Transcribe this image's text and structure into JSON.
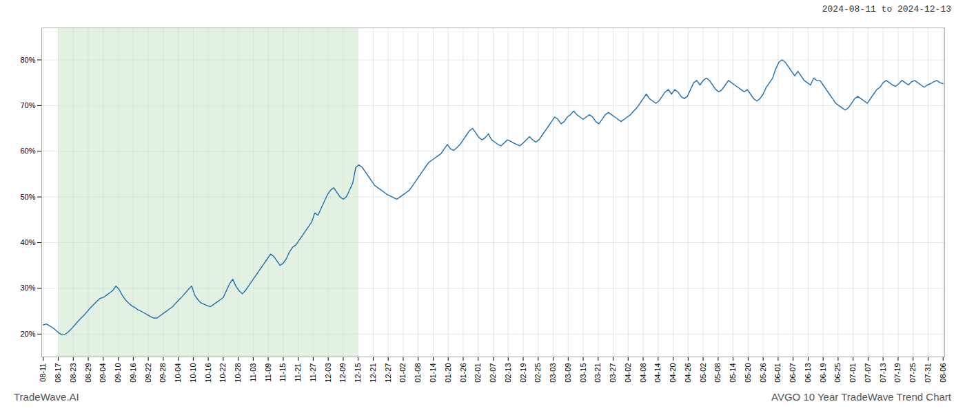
{
  "chart_data": {
    "type": "line",
    "title": "2024-08-11 to 2024-12-13",
    "footer_left": "TradeWave.AI",
    "footer_right": "AVGO 10 Year TradeWave Trend Chart",
    "color": "#1a6faf",
    "grid": true,
    "xlim": [
      -0.5,
      285.5
    ],
    "xticks": [
      {
        "value": 0,
        "label": "08-11"
      },
      {
        "value": 4.75,
        "label": "08-17"
      },
      {
        "value": 9.5,
        "label": "08-23"
      },
      {
        "value": 14.25,
        "label": "08-29"
      },
      {
        "value": 19,
        "label": "09-04"
      },
      {
        "value": 23.75,
        "label": "09-10"
      },
      {
        "value": 28.5,
        "label": "09-16"
      },
      {
        "value": 33.25,
        "label": "09-22"
      },
      {
        "value": 38,
        "label": "09-28"
      },
      {
        "value": 42.75,
        "label": "10-04"
      },
      {
        "value": 47.5,
        "label": "10-10"
      },
      {
        "value": 52.25,
        "label": "10-16"
      },
      {
        "value": 57,
        "label": "10-22"
      },
      {
        "value": 61.75,
        "label": "10-28"
      },
      {
        "value": 66.5,
        "label": "11-03"
      },
      {
        "value": 71.25,
        "label": "11-09"
      },
      {
        "value": 76,
        "label": "11-15"
      },
      {
        "value": 80.75,
        "label": "11-21"
      },
      {
        "value": 85.5,
        "label": "11-27"
      },
      {
        "value": 90.25,
        "label": "12-03"
      },
      {
        "value": 95,
        "label": "12-09"
      },
      {
        "value": 99.75,
        "label": "12-15"
      },
      {
        "value": 104.5,
        "label": "12-21"
      },
      {
        "value": 109.25,
        "label": "12-27"
      },
      {
        "value": 114,
        "label": "01-02"
      },
      {
        "value": 118.75,
        "label": "01-08"
      },
      {
        "value": 123.5,
        "label": "01-14"
      },
      {
        "value": 128.25,
        "label": "01-20"
      },
      {
        "value": 133,
        "label": "01-26"
      },
      {
        "value": 137.75,
        "label": "02-01"
      },
      {
        "value": 142.5,
        "label": "02-07"
      },
      {
        "value": 147.25,
        "label": "02-13"
      },
      {
        "value": 152,
        "label": "02-19"
      },
      {
        "value": 156.75,
        "label": "02-25"
      },
      {
        "value": 161.5,
        "label": "03-03"
      },
      {
        "value": 166.25,
        "label": "03-09"
      },
      {
        "value": 171,
        "label": "03-15"
      },
      {
        "value": 175.75,
        "label": "03-21"
      },
      {
        "value": 180.5,
        "label": "03-27"
      },
      {
        "value": 185.25,
        "label": "04-02"
      },
      {
        "value": 190,
        "label": "04-08"
      },
      {
        "value": 194.75,
        "label": "04-14"
      },
      {
        "value": 199.5,
        "label": "04-20"
      },
      {
        "value": 204.25,
        "label": "04-26"
      },
      {
        "value": 209,
        "label": "05-02"
      },
      {
        "value": 213.75,
        "label": "05-08"
      },
      {
        "value": 218.5,
        "label": "05-14"
      },
      {
        "value": 223.25,
        "label": "05-20"
      },
      {
        "value": 228,
        "label": "05-26"
      },
      {
        "value": 232.75,
        "label": "06-01"
      },
      {
        "value": 237.5,
        "label": "06-07"
      },
      {
        "value": 242.25,
        "label": "06-13"
      },
      {
        "value": 247,
        "label": "06-19"
      },
      {
        "value": 251.75,
        "label": "06-25"
      },
      {
        "value": 256.5,
        "label": "07-01"
      },
      {
        "value": 261.25,
        "label": "07-07"
      },
      {
        "value": 266,
        "label": "07-13"
      },
      {
        "value": 270.75,
        "label": "07-19"
      },
      {
        "value": 275.5,
        "label": "07-25"
      },
      {
        "value": 280.25,
        "label": "07-31"
      },
      {
        "value": 285,
        "label": "08-06"
      }
    ],
    "ylim": [
      15,
      87
    ],
    "yticks": [
      {
        "value": 20,
        "label": "20%"
      },
      {
        "value": 30,
        "label": "30%"
      },
      {
        "value": 40,
        "label": "40%"
      },
      {
        "value": 50,
        "label": "50%"
      },
      {
        "value": 60,
        "label": "60%"
      },
      {
        "value": 70,
        "label": "70%"
      },
      {
        "value": 80,
        "label": "80%"
      }
    ],
    "shade": {
      "x": [
        4.75,
        99.75
      ],
      "color": "#cce5cc"
    },
    "x": [
      0,
      1,
      2,
      3,
      4,
      5,
      6,
      7,
      8,
      9,
      10,
      11,
      12,
      13,
      14,
      15,
      16,
      17,
      18,
      19,
      20,
      21,
      22,
      23,
      24,
      25,
      26,
      27,
      28,
      29,
      30,
      31,
      32,
      33,
      34,
      35,
      36,
      37,
      38,
      39,
      40,
      41,
      42,
      43,
      44,
      45,
      46,
      47,
      48,
      49,
      50,
      51,
      52,
      53,
      54,
      55,
      56,
      57,
      58,
      59,
      60,
      61,
      62,
      63,
      64,
      65,
      66,
      67,
      68,
      69,
      70,
      71,
      72,
      73,
      74,
      75,
      76,
      77,
      78,
      79,
      80,
      81,
      82,
      83,
      84,
      85,
      86,
      87,
      88,
      89,
      90,
      91,
      92,
      93,
      94,
      95,
      96,
      97,
      98,
      99,
      100,
      101,
      102,
      103,
      104,
      105,
      106,
      107,
      108,
      109,
      110,
      111,
      112,
      113,
      114,
      115,
      116,
      117,
      118,
      119,
      120,
      121,
      122,
      123,
      124,
      125,
      126,
      127,
      128,
      129,
      130,
      131,
      132,
      133,
      134,
      135,
      136,
      137,
      138,
      139,
      140,
      141,
      142,
      143,
      144,
      145,
      146,
      147,
      148,
      149,
      150,
      151,
      152,
      153,
      154,
      155,
      156,
      157,
      158,
      159,
      160,
      161,
      162,
      163,
      164,
      165,
      166,
      167,
      168,
      169,
      170,
      171,
      172,
      173,
      174,
      175,
      176,
      177,
      178,
      179,
      180,
      181,
      182,
      183,
      184,
      185,
      186,
      187,
      188,
      189,
      190,
      191,
      192,
      193,
      194,
      195,
      196,
      197,
      198,
      199,
      200,
      201,
      202,
      203,
      204,
      205,
      206,
      207,
      208,
      209,
      210,
      211,
      212,
      213,
      214,
      215,
      216,
      217,
      218,
      219,
      220,
      221,
      222,
      223,
      224,
      225,
      226,
      227,
      228,
      229,
      230,
      231,
      232,
      233,
      234,
      235,
      236,
      237,
      238,
      239,
      240,
      241,
      242,
      243,
      244,
      245,
      246,
      247,
      248,
      249,
      250,
      251,
      252,
      253,
      254,
      255,
      256,
      257,
      258,
      259,
      260,
      261,
      262,
      263,
      264,
      265,
      266,
      267,
      268,
      269,
      270,
      271,
      272,
      273,
      274,
      275,
      276,
      277,
      278,
      279,
      280,
      281,
      282,
      283,
      284,
      285
    ],
    "values": [
      22.0,
      22.2,
      21.8,
      21.4,
      20.8,
      20.2,
      19.8,
      20.0,
      20.5,
      21.2,
      22.0,
      22.8,
      23.5,
      24.2,
      25.0,
      25.8,
      26.5,
      27.2,
      27.8,
      28.0,
      28.5,
      29.0,
      29.5,
      30.5,
      29.8,
      28.5,
      27.5,
      26.8,
      26.2,
      25.8,
      25.3,
      25.0,
      24.6,
      24.2,
      23.8,
      23.5,
      23.5,
      24.0,
      24.5,
      25.0,
      25.5,
      26.0,
      26.8,
      27.5,
      28.2,
      29.0,
      29.8,
      30.5,
      28.5,
      27.5,
      26.8,
      26.5,
      26.2,
      26.0,
      26.5,
      27.0,
      27.5,
      28.0,
      29.5,
      31.0,
      32.0,
      30.5,
      29.5,
      28.8,
      29.5,
      30.5,
      31.5,
      32.5,
      33.5,
      34.5,
      35.5,
      36.5,
      37.5,
      37.0,
      36.0,
      35.0,
      35.5,
      36.5,
      38.0,
      39.0,
      39.5,
      40.5,
      41.5,
      42.5,
      43.5,
      44.5,
      46.5,
      46.0,
      47.5,
      49.0,
      50.5,
      51.5,
      52.0,
      51.0,
      50.0,
      49.5,
      50.0,
      51.5,
      53.0,
      56.5,
      57.0,
      56.5,
      55.5,
      54.5,
      53.5,
      52.5,
      52.0,
      51.5,
      51.0,
      50.5,
      50.2,
      49.8,
      49.5,
      50.0,
      50.5,
      51.0,
      51.5,
      52.5,
      53.5,
      54.5,
      55.5,
      56.5,
      57.5,
      58.0,
      58.5,
      59.0,
      59.5,
      60.5,
      61.5,
      60.5,
      60.2,
      60.8,
      61.5,
      62.5,
      63.5,
      64.5,
      65.0,
      64.0,
      63.0,
      62.5,
      63.0,
      63.8,
      62.5,
      62.0,
      61.5,
      61.2,
      61.8,
      62.5,
      62.2,
      61.8,
      61.5,
      61.2,
      61.8,
      62.5,
      63.2,
      62.5,
      62.0,
      62.5,
      63.5,
      64.5,
      65.5,
      66.5,
      67.5,
      67.0,
      66.0,
      66.5,
      67.5,
      68.0,
      68.8,
      68.0,
      67.5,
      67.0,
      67.5,
      68.0,
      67.5,
      66.5,
      66.0,
      67.0,
      68.0,
      68.5,
      68.0,
      67.5,
      67.0,
      66.5,
      67.0,
      67.5,
      68.0,
      68.8,
      69.5,
      70.5,
      71.5,
      72.5,
      71.5,
      71.0,
      70.5,
      71.0,
      72.0,
      73.0,
      73.5,
      72.5,
      73.5,
      73.0,
      72.0,
      71.5,
      72.0,
      73.5,
      75.0,
      75.5,
      74.5,
      75.5,
      76.0,
      75.5,
      74.5,
      73.5,
      73.0,
      73.5,
      74.5,
      75.5,
      75.0,
      74.5,
      74.0,
      73.5,
      73.0,
      73.5,
      72.5,
      71.5,
      71.0,
      71.5,
      72.5,
      74.0,
      75.0,
      76.0,
      78.0,
      79.5,
      80.0,
      79.5,
      78.5,
      77.5,
      76.5,
      77.5,
      76.5,
      75.5,
      75.0,
      74.5,
      76.0,
      75.5,
      75.5,
      74.5,
      73.5,
      72.5,
      71.5,
      70.5,
      70.0,
      69.5,
      69.0,
      69.5,
      70.5,
      71.5,
      72.0,
      71.5,
      71.0,
      70.5,
      71.5,
      72.5,
      73.5,
      74.0,
      75.0,
      75.5,
      75.0,
      74.5,
      74.2,
      74.8,
      75.5,
      75.0,
      74.5,
      75.2,
      75.5,
      75.0,
      74.5,
      74.0,
      74.5,
      74.8,
      75.2,
      75.5,
      75.0,
      74.8
    ]
  }
}
